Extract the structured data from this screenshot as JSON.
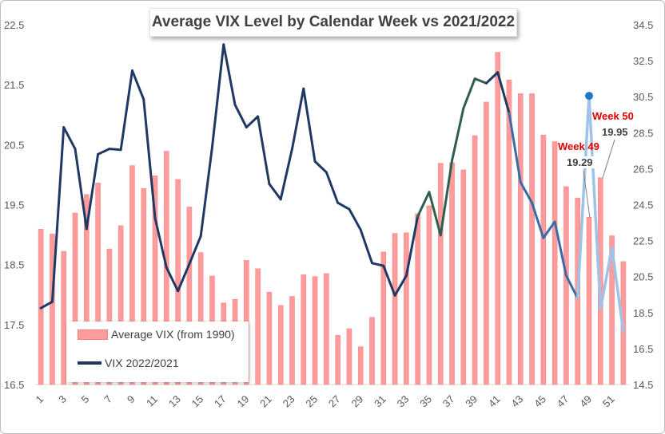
{
  "chart_data": {
    "type": "bar+line",
    "title": "Average VIX Level by Calendar Week vs 2021/2022",
    "left_axis": {
      "ylim": [
        16.5,
        22.5
      ],
      "ticks": [
        "16.5",
        "17.5",
        "18.5",
        "19.5",
        "20.5",
        "21.5",
        "22.5"
      ]
    },
    "right_axis": {
      "ylim": [
        14.5,
        34.5
      ],
      "ticks": [
        "14.5",
        "16.5",
        "18.5",
        "20.5",
        "22.5",
        "24.5",
        "26.5",
        "28.5",
        "30.5",
        "32.5",
        "34.5"
      ]
    },
    "x_labels": [
      "1",
      "3",
      "5",
      "7",
      "9",
      "11",
      "13",
      "15",
      "17",
      "19",
      "21",
      "23",
      "25",
      "27",
      "29",
      "31",
      "33",
      "35",
      "37",
      "39",
      "41",
      "43",
      "45",
      "47",
      "49",
      "51"
    ],
    "weeks": [
      1,
      2,
      3,
      4,
      5,
      6,
      7,
      8,
      9,
      10,
      11,
      12,
      13,
      14,
      15,
      16,
      17,
      18,
      19,
      20,
      21,
      22,
      23,
      24,
      25,
      26,
      27,
      28,
      29,
      30,
      31,
      32,
      33,
      34,
      35,
      36,
      37,
      38,
      39,
      40,
      41,
      42,
      43,
      44,
      45,
      46,
      47,
      48,
      49,
      50,
      51,
      52
    ],
    "series": [
      {
        "name": "Average VIX (from 1990)",
        "axis": "left",
        "color": "#ff9b9b",
        "values": [
          19.09,
          19.01,
          18.72,
          19.36,
          19.67,
          19.86,
          18.76,
          19.15,
          20.15,
          19.77,
          19.98,
          20.39,
          19.92,
          19.46,
          18.7,
          18.31,
          17.86,
          17.92,
          18.57,
          18.43,
          18.04,
          17.82,
          17.97,
          18.33,
          18.3,
          18.35,
          17.32,
          17.43,
          17.13,
          17.62,
          18.71,
          19.02,
          19.03,
          19.35,
          19.48,
          20.19,
          20.2,
          20.08,
          20.65,
          21.21,
          22.04,
          21.58,
          21.35,
          21.35,
          20.66,
          20.55,
          19.8,
          19.61,
          19.29,
          19.95,
          18.98,
          18.55
        ]
      },
      {
        "name": "VIX 2022/2021",
        "axis": "right",
        "color": "#1f3864",
        "values": [
          18.75,
          19.1,
          28.8,
          27.6,
          23.15,
          27.3,
          27.6,
          27.55,
          31.95,
          30.35,
          23.75,
          21.0,
          19.7,
          21.2,
          22.75,
          27.7,
          33.4,
          30.05,
          28.8,
          29.4,
          25.65,
          24.8,
          27.6,
          30.95,
          26.9,
          26.3,
          24.6,
          24.25,
          23.1,
          21.25,
          21.1,
          19.45,
          20.55,
          23.85,
          25.2,
          22.8,
          26.95,
          29.85,
          31.5,
          31.25,
          31.85,
          29.6,
          25.75,
          24.6,
          22.65,
          23.55,
          20.55,
          19.3,
          30.55,
          18.7,
          22.1,
          17.45
        ]
      }
    ],
    "annotations": [
      {
        "label": "Week 49",
        "value": "19.29"
      },
      {
        "label": "Week 50",
        "value": "19.95"
      }
    ],
    "legend_position": "bottom-left",
    "grid": false
  }
}
